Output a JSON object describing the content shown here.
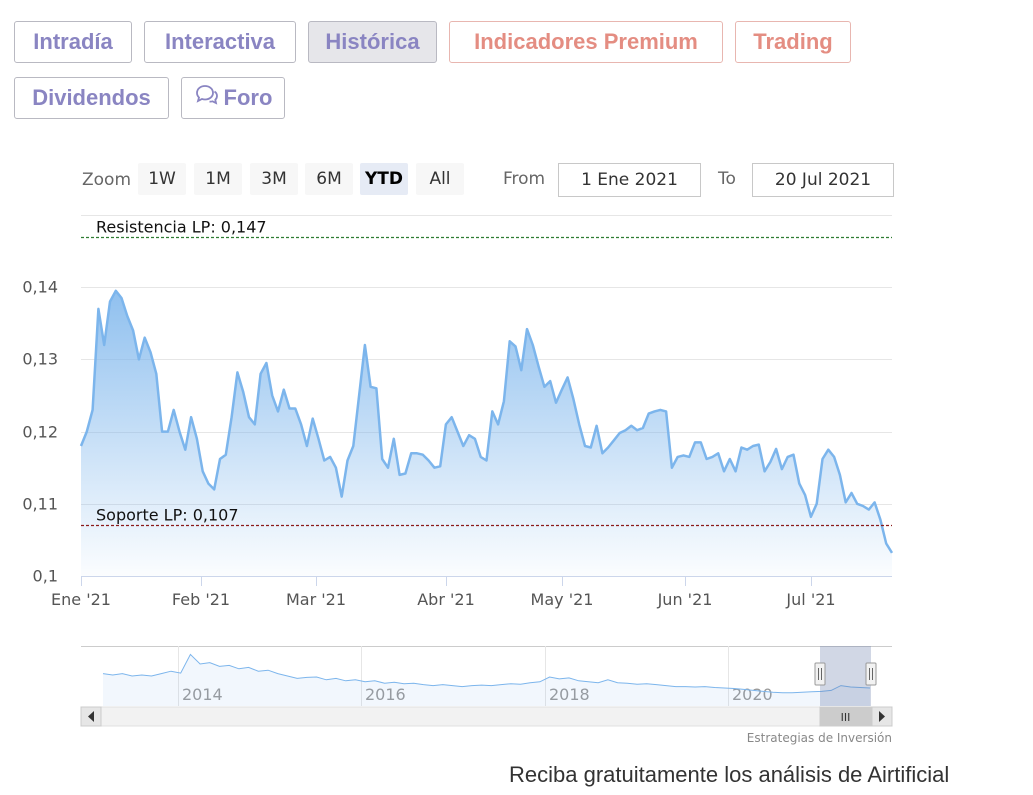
{
  "tabs": [
    {
      "label": "Intradía"
    },
    {
      "label": "Interactiva"
    },
    {
      "label": "Histórica"
    },
    {
      "label": "Indicadores Premium"
    },
    {
      "label": "Trading"
    },
    {
      "label": "Dividendos"
    },
    {
      "label": "Foro"
    }
  ],
  "active_tab": "Histórica",
  "range_selector": {
    "zoom_label": "Zoom",
    "buttons": [
      "1W",
      "1M",
      "3M",
      "6M",
      "YTD",
      "All"
    ],
    "selected": "YTD",
    "from_label": "From",
    "from_value": "1 Ene 2021",
    "to_label": "To",
    "to_value": "20 Jul 2021"
  },
  "chart_data": {
    "type": "area",
    "ylim": [
      0.1,
      0.15
    ],
    "y_ticks": [
      "0,1",
      "0,11",
      "0,12",
      "0,13",
      "0,14"
    ],
    "x_ticks": [
      "Ene '21",
      "Feb '21",
      "Mar '21",
      "Abr '21",
      "May '21",
      "Jun '21",
      "Jul '21"
    ],
    "annotations": [
      {
        "label": "Resistencia LP: 0,147",
        "value": 0.147,
        "color": "#2e7d32"
      },
      {
        "label": "Soporte LP: 0,107",
        "value": 0.107,
        "color": "#8b1a1a"
      }
    ],
    "series": [
      {
        "color": "#7cb5ec",
        "values": [
          0.118,
          0.12,
          0.123,
          0.137,
          0.132,
          0.138,
          0.1395,
          0.1385,
          0.136,
          0.134,
          0.13,
          0.133,
          0.131,
          0.128,
          0.12,
          0.12,
          0.123,
          0.12,
          0.1175,
          0.122,
          0.119,
          0.1145,
          0.1128,
          0.112,
          0.1162,
          0.1168,
          0.122,
          0.1282,
          0.1255,
          0.122,
          0.121,
          0.128,
          0.1295,
          0.125,
          0.1228,
          0.1258,
          0.1232,
          0.1232,
          0.121,
          0.118,
          0.1218,
          0.119,
          0.116,
          0.1165,
          0.115,
          0.111,
          0.116,
          0.118,
          0.125,
          0.132,
          0.1262,
          0.126,
          0.1162,
          0.115,
          0.119,
          0.114,
          0.1142,
          0.117,
          0.117,
          0.1168,
          0.116,
          0.115,
          0.1152,
          0.121,
          0.122,
          0.12,
          0.118,
          0.1195,
          0.119,
          0.1165,
          0.116,
          0.1228,
          0.121,
          0.1242,
          0.1325,
          0.1318,
          0.1285,
          0.1342,
          0.132,
          0.129,
          0.1262,
          0.127,
          0.124,
          0.1258,
          0.1275,
          0.1245,
          0.121,
          0.118,
          0.1178,
          0.1208,
          0.117,
          0.1178,
          0.1188,
          0.1198,
          0.1202,
          0.1208,
          0.1202,
          0.1205,
          0.1225,
          0.1228,
          0.123,
          0.1228,
          0.115,
          0.1165,
          0.1167,
          0.1165,
          0.1185,
          0.1185,
          0.1162,
          0.1165,
          0.117,
          0.1145,
          0.1162,
          0.1145,
          0.1178,
          0.1175,
          0.118,
          0.1182,
          0.1145,
          0.1158,
          0.1176,
          0.1148,
          0.1165,
          0.1168,
          0.1128,
          0.1112,
          0.1082,
          0.11,
          0.1162,
          0.1175,
          0.1165,
          0.114,
          0.1102,
          0.1115,
          0.11,
          0.1097,
          0.1092,
          0.1102,
          0.1078,
          0.1045,
          0.1032
        ]
      }
    ],
    "navigator": {
      "x_ticks": [
        "2014",
        "2016",
        "2018",
        "2020"
      ],
      "values": [
        0.55,
        0.52,
        0.55,
        0.5,
        0.52,
        0.5,
        0.55,
        0.6,
        0.56,
        0.95,
        0.75,
        0.78,
        0.7,
        0.72,
        0.65,
        0.68,
        0.6,
        0.62,
        0.55,
        0.5,
        0.45,
        0.47,
        0.48,
        0.42,
        0.45,
        0.4,
        0.42,
        0.38,
        0.4,
        0.35,
        0.37,
        0.34,
        0.35,
        0.32,
        0.3,
        0.32,
        0.3,
        0.28,
        0.3,
        0.31,
        0.3,
        0.32,
        0.34,
        0.33,
        0.36,
        0.38,
        0.48,
        0.44,
        0.46,
        0.4,
        0.38,
        0.36,
        0.42,
        0.36,
        0.35,
        0.33,
        0.34,
        0.32,
        0.3,
        0.28,
        0.28,
        0.27,
        0.28,
        0.26,
        0.25,
        0.24,
        0.22,
        0.2,
        0.18,
        0.16,
        0.15,
        0.15,
        0.16,
        0.17,
        0.18,
        0.2,
        0.3,
        0.27,
        0.26,
        0.25
      ],
      "scrollbar_grip": "III"
    },
    "credit": "Estrategias de Inversión"
  },
  "footer_text": "Reciba gratuitamente los análisis de Airtificial"
}
